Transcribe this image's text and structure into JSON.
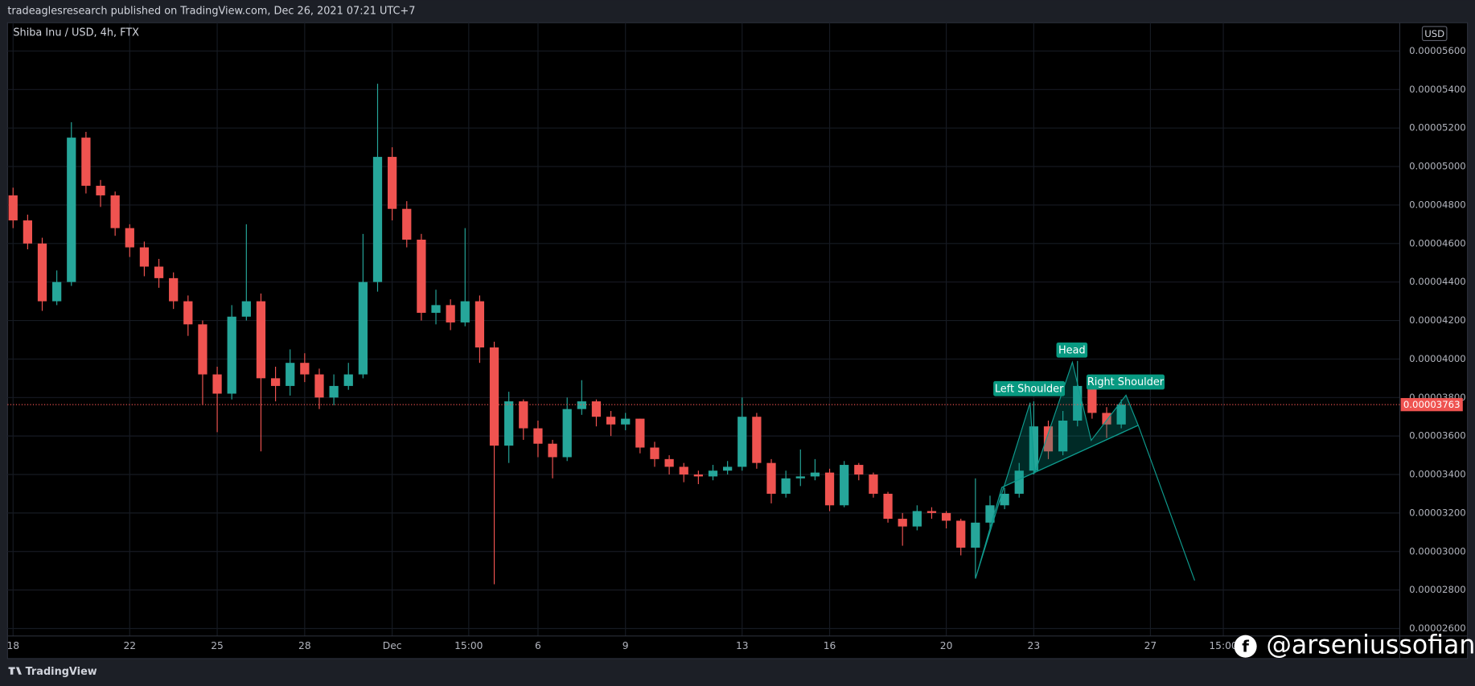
{
  "header": {
    "publisher": "tradeaglesresearch published on TradingView.com, Dec 26, 2021 07:21 UTC+7"
  },
  "chart_data": {
    "type": "candlestick",
    "title": "Shiba Inu / USD, 4h, FTX",
    "currency": "USD",
    "x": [
      0,
      0.5,
      1,
      1.5,
      2,
      2.5,
      3,
      3.5,
      4,
      4.5,
      5,
      5.5,
      6,
      6.5,
      7,
      7.5,
      8,
      8.5,
      9,
      9.5,
      10,
      10.5,
      11,
      11.5,
      12,
      12.5,
      13,
      13.5,
      14,
      14.5,
      15,
      15.5,
      16,
      16.5,
      17,
      17.5,
      18,
      18.5,
      19,
      19.5,
      20,
      20.5,
      21,
      21.5,
      22,
      22.5,
      23,
      23.5,
      24,
      24.5,
      25,
      25.5,
      26,
      26.5,
      27,
      27.5,
      28,
      28.5,
      29,
      29.5,
      30,
      30.5,
      31,
      31.5,
      32,
      32.5,
      33,
      33.5,
      34,
      34.5,
      35,
      35.5,
      36,
      36.5,
      37,
      37.5,
      38
    ],
    "open": [
      4.85e-05,
      4.72e-05,
      4.6e-05,
      4.3e-05,
      4.4e-05,
      5.15e-05,
      4.9e-05,
      4.85e-05,
      4.68e-05,
      4.58e-05,
      4.48e-05,
      4.42e-05,
      4.3e-05,
      4.18e-05,
      3.92e-05,
      3.82e-05,
      4.22e-05,
      4.3e-05,
      3.9e-05,
      3.86e-05,
      3.98e-05,
      3.92e-05,
      3.8e-05,
      3.86e-05,
      3.92e-05,
      4.4e-05,
      5.05e-05,
      4.78e-05,
      4.62e-05,
      4.24e-05,
      4.28e-05,
      4.19e-05,
      4.3e-05,
      4.06e-05,
      3.55e-05,
      3.78e-05,
      3.64e-05,
      3.56e-05,
      3.49e-05,
      3.74e-05,
      3.78e-05,
      3.7e-05,
      3.66e-05,
      3.69e-05,
      3.54e-05,
      3.48e-05,
      3.44e-05,
      3.4e-05,
      3.39e-05,
      3.42e-05,
      3.44e-05,
      3.7e-05,
      3.46e-05,
      3.3e-05,
      3.38e-05,
      3.39e-05,
      3.41e-05,
      3.24e-05,
      3.45e-05,
      3.4e-05,
      3.3e-05,
      3.17e-05,
      3.13e-05,
      3.21e-05,
      3.2e-05,
      3.16e-05,
      3.02e-05,
      3.15e-05,
      3.24e-05,
      3.3e-05,
      3.42e-05,
      3.65e-05,
      3.52e-05,
      3.68e-05,
      3.86e-05,
      3.72e-05,
      3.66e-05
    ],
    "high": [
      4.89e-05,
      4.75e-05,
      4.63e-05,
      4.46e-05,
      5.23e-05,
      5.18e-05,
      4.93e-05,
      4.87e-05,
      4.7e-05,
      4.61e-05,
      4.52e-05,
      4.45e-05,
      4.33e-05,
      4.2e-05,
      3.96e-05,
      4.28e-05,
      4.7e-05,
      4.34e-05,
      3.96e-05,
      4.05e-05,
      4.03e-05,
      3.95e-05,
      3.92e-05,
      3.98e-05,
      4.65e-05,
      5.43e-05,
      5.1e-05,
      4.82e-05,
      4.65e-05,
      4.36e-05,
      4.31e-05,
      4.68e-05,
      4.33e-05,
      4.09e-05,
      3.83e-05,
      3.79e-05,
      3.68e-05,
      3.58e-05,
      3.8e-05,
      3.89e-05,
      3.79e-05,
      3.73e-05,
      3.72e-05,
      3.69e-05,
      3.57e-05,
      3.5e-05,
      3.46e-05,
      3.42e-05,
      3.45e-05,
      3.47e-05,
      3.8e-05,
      3.72e-05,
      3.48e-05,
      3.42e-05,
      3.53e-05,
      3.48e-05,
      3.43e-05,
      3.47e-05,
      3.46e-05,
      3.41e-05,
      3.31e-05,
      3.2e-05,
      3.24e-05,
      3.23e-05,
      3.21e-05,
      3.17e-05,
      3.38e-05,
      3.29e-05,
      3.33e-05,
      3.46e-05,
      3.78e-05,
      3.68e-05,
      3.73e-05,
      3.99e-05,
      3.92e-05,
      3.75e-05,
      3.79e-05
    ],
    "low": [
      4.68e-05,
      4.57e-05,
      4.25e-05,
      4.28e-05,
      4.38e-05,
      4.86e-05,
      4.79e-05,
      4.64e-05,
      4.53e-05,
      4.43e-05,
      4.37e-05,
      4.26e-05,
      4.12e-05,
      3.76e-05,
      3.62e-05,
      3.79e-05,
      4.2e-05,
      3.52e-05,
      3.78e-05,
      3.81e-05,
      3.88e-05,
      3.74e-05,
      3.76e-05,
      3.84e-05,
      3.9e-05,
      4.35e-05,
      4.72e-05,
      4.58e-05,
      4.2e-05,
      4.18e-05,
      4.15e-05,
      4.17e-05,
      3.98e-05,
      2.83e-05,
      3.46e-05,
      3.58e-05,
      3.49e-05,
      3.38e-05,
      3.47e-05,
      3.71e-05,
      3.65e-05,
      3.6e-05,
      3.63e-05,
      3.51e-05,
      3.44e-05,
      3.4e-05,
      3.36e-05,
      3.35e-05,
      3.37e-05,
      3.4e-05,
      3.42e-05,
      3.43e-05,
      3.25e-05,
      3.28e-05,
      3.34e-05,
      3.37e-05,
      3.21e-05,
      3.23e-05,
      3.37e-05,
      3.28e-05,
      3.15e-05,
      3.03e-05,
      3.11e-05,
      3.17e-05,
      3.12e-05,
      2.98e-05,
      2.86e-05,
      3.12e-05,
      3.22e-05,
      3.28e-05,
      3.4e-05,
      3.48e-05,
      3.5e-05,
      3.65e-05,
      3.69e-05,
      3.59e-05,
      3.64e-05
    ],
    "close": [
      4.72e-05,
      4.6e-05,
      4.3e-05,
      4.4e-05,
      5.15e-05,
      4.9e-05,
      4.85e-05,
      4.68e-05,
      4.58e-05,
      4.48e-05,
      4.42e-05,
      4.3e-05,
      4.18e-05,
      3.92e-05,
      3.82e-05,
      4.22e-05,
      4.3e-05,
      3.9e-05,
      3.86e-05,
      3.98e-05,
      3.92e-05,
      3.8e-05,
      3.86e-05,
      3.92e-05,
      4.4e-05,
      5.05e-05,
      4.78e-05,
      4.62e-05,
      4.24e-05,
      4.28e-05,
      4.19e-05,
      4.3e-05,
      4.06e-05,
      3.55e-05,
      3.78e-05,
      3.64e-05,
      3.56e-05,
      3.49e-05,
      3.74e-05,
      3.78e-05,
      3.7e-05,
      3.66e-05,
      3.69e-05,
      3.54e-05,
      3.48e-05,
      3.44e-05,
      3.4e-05,
      3.39e-05,
      3.42e-05,
      3.44e-05,
      3.7e-05,
      3.46e-05,
      3.3e-05,
      3.38e-05,
      3.39e-05,
      3.41e-05,
      3.24e-05,
      3.45e-05,
      3.4e-05,
      3.3e-05,
      3.17e-05,
      3.13e-05,
      3.21e-05,
      3.2e-05,
      3.16e-05,
      3.02e-05,
      3.15e-05,
      3.24e-05,
      3.3e-05,
      3.42e-05,
      3.65e-05,
      3.52e-05,
      3.68e-05,
      3.86e-05,
      3.72e-05,
      3.66e-05,
      3.763e-05
    ],
    "up_color": "#26a69a",
    "down_color": "#ef5350",
    "xlim": [
      -0.19,
      47.55
    ],
    "xticks": [
      {
        "value": 0,
        "label": "18"
      },
      {
        "value": 4,
        "label": "22"
      },
      {
        "value": 7,
        "label": "25"
      },
      {
        "value": 10,
        "label": "28"
      },
      {
        "value": 13,
        "label": "Dec"
      },
      {
        "value": 15.625,
        "label": "15:00"
      },
      {
        "value": 18,
        "label": "6"
      },
      {
        "value": 21,
        "label": "9"
      },
      {
        "value": 25,
        "label": "13"
      },
      {
        "value": 28,
        "label": "16"
      },
      {
        "value": 32,
        "label": "20"
      },
      {
        "value": 35,
        "label": "23"
      },
      {
        "value": 39,
        "label": "27"
      },
      {
        "value": 41.5,
        "label": "15:00"
      }
    ],
    "ylim": [
      2.561e-05,
      5.747e-05
    ],
    "yticks": [
      {
        "value": 2.6e-05,
        "label": "0.00002600"
      },
      {
        "value": 2.8e-05,
        "label": "0.00002800"
      },
      {
        "value": 3e-05,
        "label": "0.00003000"
      },
      {
        "value": 3.2e-05,
        "label": "0.00003200"
      },
      {
        "value": 3.4e-05,
        "label": "0.00003400"
      },
      {
        "value": 3.6e-05,
        "label": "0.00003600"
      },
      {
        "value": 3.8e-05,
        "label": "0.00003800"
      },
      {
        "value": 4e-05,
        "label": "0.00004000"
      },
      {
        "value": 4.2e-05,
        "label": "0.00004200"
      },
      {
        "value": 4.4e-05,
        "label": "0.00004400"
      },
      {
        "value": 4.6e-05,
        "label": "0.00004600"
      },
      {
        "value": 4.8e-05,
        "label": "0.00004800"
      },
      {
        "value": 5e-05,
        "label": "0.00005000"
      },
      {
        "value": 5.2e-05,
        "label": "0.00005200"
      },
      {
        "value": 5.4e-05,
        "label": "0.00005400"
      },
      {
        "value": 5.6e-05,
        "label": "0.00005600"
      }
    ],
    "grid": true,
    "last_price": {
      "value": 3.763e-05,
      "label": "0.00003763"
    },
    "annotations": [
      "Left Shoulder",
      "Head",
      "Right Shoulder"
    ]
  },
  "footer": {
    "brand": "TradingView",
    "watermark": "@arseniussofian"
  }
}
